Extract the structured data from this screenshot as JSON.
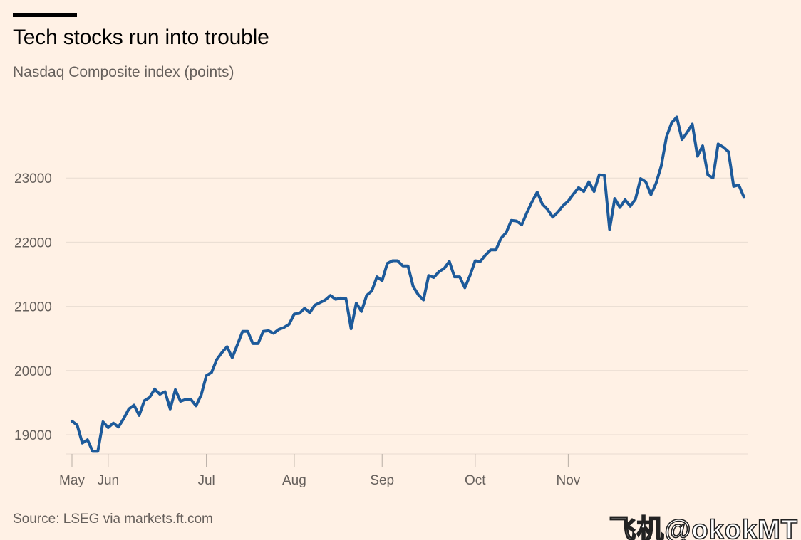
{
  "header": {
    "title": "Tech stocks run into trouble",
    "subtitle": "Nasdaq Composite index (points)"
  },
  "footer": {
    "source": "Source: LSEG via markets.ft.com",
    "watermark": "飞机@okokMT"
  },
  "colors": {
    "background": "#fff1e5",
    "line": "#1d5a9a",
    "grid": "#e8dcd1",
    "text_muted": "#66605c"
  },
  "chart_data": {
    "type": "line",
    "title": "Tech stocks run into trouble",
    "subtitle": "Nasdaq Composite index (points)",
    "xlabel": "",
    "ylabel": "",
    "ylim": [
      18700,
      24000
    ],
    "yticks": [
      19000,
      20000,
      21000,
      22000,
      23000
    ],
    "ytick_labels": [
      "19000",
      "20000",
      "21000",
      "22000",
      "23000"
    ],
    "xticks": [
      0,
      7,
      26,
      43,
      60,
      78,
      96
    ],
    "xtick_labels": [
      "May",
      "Jun",
      "Jul",
      "Aug",
      "Sep",
      "Oct",
      "Nov"
    ],
    "grid": true,
    "series": [
      {
        "name": "Nasdaq Composite",
        "values": [
          19210,
          19150,
          18870,
          18920,
          18740,
          18740,
          19200,
          19110,
          19180,
          19120,
          19250,
          19400,
          19460,
          19300,
          19530,
          19580,
          19710,
          19630,
          19670,
          19400,
          19700,
          19520,
          19550,
          19550,
          19450,
          19620,
          19920,
          19970,
          20170,
          20280,
          20370,
          20200,
          20400,
          20610,
          20610,
          20420,
          20420,
          20610,
          20620,
          20580,
          20640,
          20670,
          20720,
          20880,
          20890,
          20970,
          20900,
          21020,
          21060,
          21100,
          21170,
          21110,
          21130,
          21120,
          20650,
          21050,
          20920,
          21170,
          21240,
          21460,
          21400,
          21670,
          21710,
          21710,
          21630,
          21630,
          21310,
          21180,
          21100,
          21480,
          21450,
          21540,
          21590,
          21700,
          21460,
          21460,
          21290,
          21480,
          21710,
          21700,
          21800,
          21880,
          21880,
          22060,
          22150,
          22340,
          22330,
          22270,
          22460,
          22630,
          22780,
          22590,
          22510,
          22390,
          22470,
          22570,
          22640,
          22750,
          22850,
          22790,
          22940,
          22790,
          23050,
          23040,
          22200,
          22680,
          22540,
          22660,
          22560,
          22670,
          22990,
          22940,
          22740,
          22920,
          23190,
          23640,
          23860,
          23950,
          23600,
          23710,
          23840,
          23340,
          23500,
          23050,
          23000,
          23530,
          23480,
          23410,
          22870,
          22890,
          22700
        ]
      }
    ]
  }
}
